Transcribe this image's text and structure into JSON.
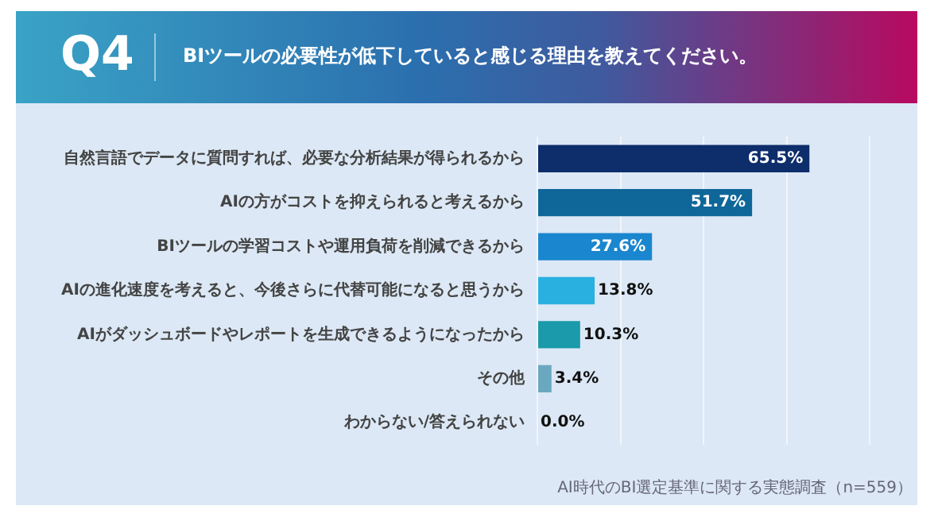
{
  "chart_data": {
    "type": "bar",
    "orientation": "horizontal",
    "subtitle": "Q4",
    "title": "BIツールの必要性が低下していると感じる理由を教えてください。",
    "categories": [
      "自然言語でデータに質問すれば、必要な分析結果が得られるから",
      "AIの方がコストを抑えられると考えるから",
      "BIツールの学習コストや運用負荷を削減できるから",
      "AIの進化速度を考えると、今後さらに代替可能になると思うから",
      "AIがダッシュボードやレポートを生成できるようになったから",
      "その他",
      "わからない/答えられない"
    ],
    "values": [
      65.5,
      51.7,
      27.6,
      13.8,
      10.3,
      3.4,
      0.0
    ],
    "value_labels": [
      "65.5%",
      "51.7%",
      "27.6%",
      "13.8%",
      "10.3%",
      "3.4%",
      "0.0%"
    ],
    "colors": [
      "#0d2d6b",
      "#0e6699",
      "#1a86cf",
      "#29b0e0",
      "#1a9aaa",
      "#6aa8bf",
      "#6aa8bf"
    ],
    "xlim": [
      0,
      80
    ],
    "xticks": [
      {
        "value": 0,
        "label": null
      },
      {
        "value": 20,
        "label": null
      },
      {
        "value": 40,
        "label": null
      },
      {
        "value": 60,
        "label": null
      },
      {
        "value": 80,
        "label": null
      }
    ],
    "grid": "x",
    "tick_labels": "y",
    "annotations": [
      "AI時代のBI選定基準に関する実態調査（n=559）"
    ]
  }
}
